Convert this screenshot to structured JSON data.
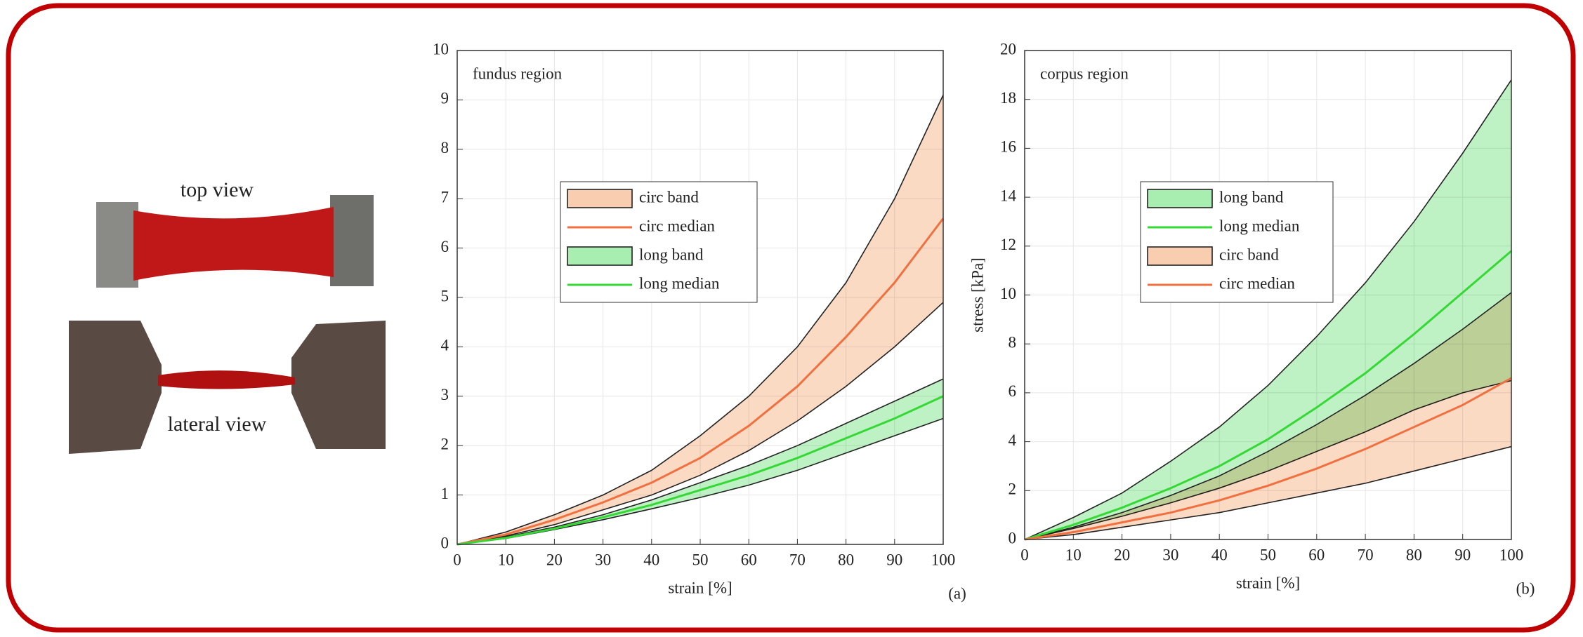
{
  "photos": {
    "top_label": "top view",
    "lateral_label": "lateral view"
  },
  "chart_data": [
    {
      "type": "band-line",
      "annotation": "fundus region",
      "xlabel": "strain [%]",
      "panel": "(a)",
      "x": [
        0,
        10,
        20,
        30,
        40,
        50,
        60,
        70,
        80,
        90,
        100
      ],
      "xlim": [
        0,
        100
      ],
      "xticks": [
        0,
        10,
        20,
        30,
        40,
        50,
        60,
        70,
        80,
        90,
        100
      ],
      "ylim": [
        0,
        10
      ],
      "yticks": [
        0,
        1,
        2,
        3,
        4,
        5,
        6,
        7,
        8,
        9,
        10
      ],
      "grid": true,
      "series": [
        {
          "name": "circ band",
          "color": "#f9cdb0",
          "upper": [
            0,
            0.25,
            0.6,
            1.0,
            1.5,
            2.2,
            3.0,
            4.0,
            5.3,
            7.0,
            9.1
          ],
          "lower": [
            0,
            0.17,
            0.4,
            0.7,
            1.0,
            1.4,
            1.9,
            2.5,
            3.2,
            4.0,
            4.9
          ]
        },
        {
          "name": "circ median",
          "color": "#f07040",
          "values": [
            0,
            0.2,
            0.5,
            0.85,
            1.25,
            1.75,
            2.4,
            3.2,
            4.2,
            5.3,
            6.6
          ]
        },
        {
          "name": "long band",
          "color": "#a8eeb0",
          "upper": [
            0,
            0.15,
            0.35,
            0.6,
            0.9,
            1.25,
            1.6,
            2.0,
            2.45,
            2.9,
            3.35
          ],
          "lower": [
            0,
            0.12,
            0.3,
            0.5,
            0.72,
            0.95,
            1.2,
            1.5,
            1.85,
            2.2,
            2.55
          ]
        },
        {
          "name": "long median",
          "color": "#35d835",
          "values": [
            0,
            0.13,
            0.32,
            0.55,
            0.8,
            1.1,
            1.4,
            1.75,
            2.15,
            2.55,
            3.0
          ]
        }
      ]
    },
    {
      "type": "band-line",
      "annotation": "corpus region",
      "xlabel": "strain [%]",
      "ylabel": "stress [kPa]",
      "panel": "(b)",
      "x": [
        0,
        10,
        20,
        30,
        40,
        50,
        60,
        70,
        80,
        90,
        100
      ],
      "xlim": [
        0,
        100
      ],
      "xticks": [
        0,
        10,
        20,
        30,
        40,
        50,
        60,
        70,
        80,
        90,
        100
      ],
      "ylim": [
        0,
        20
      ],
      "yticks": [
        0,
        2,
        4,
        6,
        8,
        10,
        12,
        14,
        16,
        18,
        20
      ],
      "grid": true,
      "series": [
        {
          "name": "long band",
          "color": "#a8eeb0",
          "upper": [
            0,
            0.9,
            1.9,
            3.2,
            4.6,
            6.3,
            8.3,
            10.5,
            13.0,
            15.8,
            18.8
          ],
          "lower": [
            0,
            0.45,
            0.95,
            1.5,
            2.1,
            2.8,
            3.6,
            4.4,
            5.3,
            6.0,
            6.5
          ]
        },
        {
          "name": "long median",
          "color": "#35d835",
          "values": [
            0,
            0.6,
            1.3,
            2.1,
            3.0,
            4.1,
            5.4,
            6.8,
            8.4,
            10.1,
            11.8
          ]
        },
        {
          "name": "circ band",
          "color": "#f9cdb0",
          "upper": [
            0,
            0.5,
            1.1,
            1.8,
            2.6,
            3.6,
            4.7,
            5.9,
            7.2,
            8.6,
            10.1
          ],
          "lower": [
            0,
            0.2,
            0.5,
            0.8,
            1.1,
            1.5,
            1.9,
            2.3,
            2.8,
            3.3,
            3.8
          ]
        },
        {
          "name": "circ median",
          "color": "#f07040",
          "values": [
            0,
            0.3,
            0.7,
            1.1,
            1.6,
            2.2,
            2.9,
            3.7,
            4.6,
            5.5,
            6.6
          ]
        }
      ]
    }
  ]
}
